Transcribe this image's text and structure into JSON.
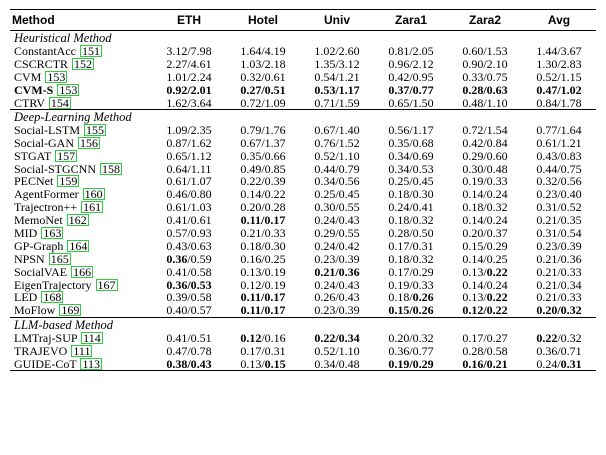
{
  "columns": [
    "Method",
    "ETH",
    "Hotel",
    "Univ",
    "Zara1",
    "Zara2",
    "Avg"
  ],
  "sections": [
    {
      "title": "Heuristical Method",
      "rows": [
        {
          "name": "ConstantAcc",
          "ref": "151",
          "cells": [
            "3.12/7.98",
            "1.64/4.19",
            "1.02/2.60",
            "0.81/2.05",
            "0.60/1.53",
            "1.44/3.67"
          ]
        },
        {
          "name": "CSCRCTR",
          "ref": "152",
          "cells": [
            "2.27/4.61",
            "1.03/2.18",
            "1.35/3.12",
            "0.96/2.12",
            "0.90/2.10",
            "1.30/2.83"
          ]
        },
        {
          "name": "CVM",
          "ref": "153",
          "cells": [
            "1.01/2.24",
            "0.32/0.61",
            "0.54/1.21",
            "0.42/0.95",
            "0.33/0.75",
            "0.52/1.15"
          ]
        },
        {
          "name": "CVM-S",
          "ref": "153",
          "bold_all": true,
          "cells": [
            "0.92/2.01",
            "0.27/0.51",
            "0.53/1.17",
            "0.37/0.77",
            "0.28/0.63",
            "0.47/1.02"
          ]
        },
        {
          "name": "CTRV",
          "ref": "154",
          "cells": [
            "1.62/3.64",
            "0.72/1.09",
            "0.71/1.59",
            "0.65/1.50",
            "0.48/1.10",
            "0.84/1.78"
          ]
        }
      ]
    },
    {
      "title": "Deep-Learning Method",
      "rows": [
        {
          "name": "Social-LSTM",
          "ref": "155",
          "cells": [
            "1.09/2.35",
            "0.79/1.76",
            "0.67/1.40",
            "0.56/1.17",
            "0.72/1.54",
            "0.77/1.64"
          ]
        },
        {
          "name": "Social-GAN",
          "ref": "156",
          "cells": [
            "0.87/1.62",
            "0.67/1.37",
            "0.76/1.52",
            "0.35/0.68",
            "0.42/0.84",
            "0.61/1.21"
          ]
        },
        {
          "name": "STGAT",
          "ref": "157",
          "cells": [
            "0.65/1.12",
            "0.35/0.66",
            "0.52/1.10",
            "0.34/0.69",
            "0.29/0.60",
            "0.43/0.83"
          ]
        },
        {
          "name": "Social-STGCNN",
          "ref": "158",
          "cells": [
            "0.64/1.11",
            "0.49/0.85",
            "0.44/0.79",
            "0.34/0.53",
            "0.30/0.48",
            "0.44/0.75"
          ]
        },
        {
          "name": "PECNet",
          "ref": "159",
          "cells": [
            "0.61/1.07",
            "0.22/0.39",
            "0.34/0.56",
            "0.25/0.45",
            "0.19/0.33",
            "0.32/0.56"
          ]
        },
        {
          "name": "AgentFormer",
          "ref": "160",
          "cells": [
            "0.46/0.80",
            "0.14/0.22",
            "0.25/0.45",
            "0.18/0.30",
            "0.14/0.24",
            "0.23/0.40"
          ]
        },
        {
          "name": "Trajectron++",
          "ref": "161",
          "cells": [
            "0.61/1.03",
            "0.20/0.28",
            "0.30/0.55",
            "0.24/0.41",
            "0.18/0.32",
            "0.31/0.52"
          ]
        },
        {
          "name": "MemoNet",
          "ref": "162",
          "cells": [
            "0.41/0.61",
            "<b>0.11/0.17</b>",
            "0.24/0.43",
            "0.18/0.32",
            "0.14/0.24",
            "0.21/0.35"
          ]
        },
        {
          "name": "MID",
          "ref": "163",
          "cells": [
            "0.57/0.93",
            "0.21/0.33",
            "0.29/0.55",
            "0.28/0.50",
            "0.20/0.37",
            "0.31/0.54"
          ]
        },
        {
          "name": "GP-Graph",
          "ref": "164",
          "cells": [
            "0.43/0.63",
            "0.18/0.30",
            "0.24/0.42",
            "0.17/0.31",
            "0.15/0.29",
            "0.23/0.39"
          ]
        },
        {
          "name": "NPSN",
          "ref": "165",
          "cells": [
            "<b>0.36</b>/0.59",
            "0.16/0.25",
            "0.23/0.39",
            "0.18/0.32",
            "0.14/0.25",
            "0.21/0.36"
          ]
        },
        {
          "name": "SocialVAE",
          "ref": "166",
          "cells": [
            "0.41/0.58",
            "0.13/0.19",
            "<b>0.21/0.36</b>",
            "0.17/0.29",
            "0.13/<b>0.22</b>",
            "0.21/0.33"
          ]
        },
        {
          "name": "EigenTrajectory",
          "ref": "167",
          "cells": [
            "<b>0.36/0.53</b>",
            "0.12/0.19",
            "0.24/0.43",
            "0.19/0.33",
            "0.14/0.24",
            "0.21/0.34"
          ]
        },
        {
          "name": "LED",
          "ref": "168",
          "cells": [
            "0.39/0.58",
            "<b>0.11/0.17</b>",
            "0.26/0.43",
            "0.18/<b>0.26</b>",
            "0.13/<b>0.22</b>",
            "0.21/0.33"
          ]
        },
        {
          "name": "MoFlow",
          "ref": "169",
          "cells": [
            "0.40/0.57",
            "<b>0.11/0.17</b>",
            "0.23/0.39",
            "<b>0.15/0.26</b>",
            "<b>0.12/0.22</b>",
            "<b>0.20/0.32</b>"
          ]
        }
      ]
    },
    {
      "title": "LLM-based Method",
      "rows": [
        {
          "name": "LMTraj-SUP",
          "ref": "114",
          "cells": [
            "0.41/0.51",
            "<b>0.12</b>/0.16",
            "<b>0.22/0.34</b>",
            "0.20/0.32",
            "0.17/0.27",
            "<b>0.22</b>/0.32"
          ]
        },
        {
          "name": "TRAJEVO",
          "ref": "111",
          "cells": [
            "0.47/0.78",
            "0.17/0.31",
            "0.52/1.10",
            "0.36/0.77",
            "0.28/0.58",
            "0.36/0.71"
          ]
        },
        {
          "name": "GUIDE-CoT",
          "ref": "113",
          "cells": [
            "<b>0.38/0.43</b>",
            "0.13/<b>0.15</b>",
            "0.34/0.48",
            "<b>0.19/0.29</b>",
            "<b>0.16/0.21</b>",
            "0.24/<b>0.31</b>"
          ]
        }
      ]
    }
  ]
}
